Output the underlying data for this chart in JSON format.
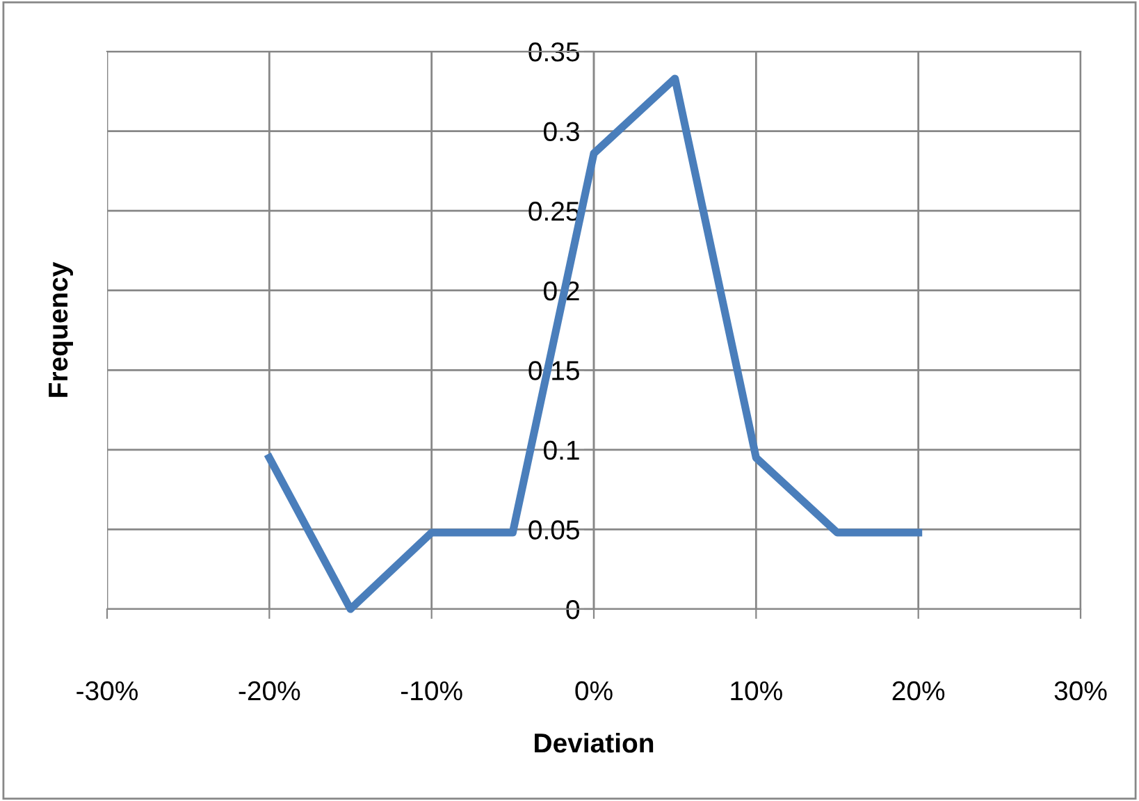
{
  "chart_data": {
    "type": "line",
    "xlabel": "Deviation",
    "ylabel": "Frequency",
    "x": [
      -0.2,
      -0.15,
      -0.1,
      -0.05,
      0,
      0.05,
      0.1,
      0.15,
      0.2
    ],
    "series": [
      {
        "color": "#4a7ebb",
        "values": [
          0.095,
          0,
          0.048,
          0.048,
          0.286,
          0.333,
          0.095,
          0.048,
          0.048
        ]
      }
    ],
    "xlim": [
      -0.3,
      0.3
    ],
    "xticks": [
      {
        "value": -0.3,
        "label": "-30%"
      },
      {
        "value": -0.2,
        "label": "-20%"
      },
      {
        "value": -0.1,
        "label": "-10%"
      },
      {
        "value": 0,
        "label": "0%"
      },
      {
        "value": 0.1,
        "label": "10%"
      },
      {
        "value": 0.2,
        "label": "20%"
      },
      {
        "value": 0.3,
        "label": "30%"
      }
    ],
    "ylim": [
      0,
      0.35
    ],
    "yticks": [
      0,
      {
        "value": 0.05,
        "label": "0.05"
      },
      {
        "value": 0.1,
        "label": "0.1"
      },
      {
        "value": 0.15,
        "label": "0.15"
      },
      {
        "value": 0.2,
        "label": "0.2"
      },
      {
        "value": 0.25,
        "label": "0.25"
      },
      {
        "value": 0.3,
        "label": "0.3"
      },
      {
        "value": 0.35,
        "label": "0.35"
      }
    ],
    "grid": true,
    "marker": "none",
    "line_style": "solid",
    "legend": false
  }
}
